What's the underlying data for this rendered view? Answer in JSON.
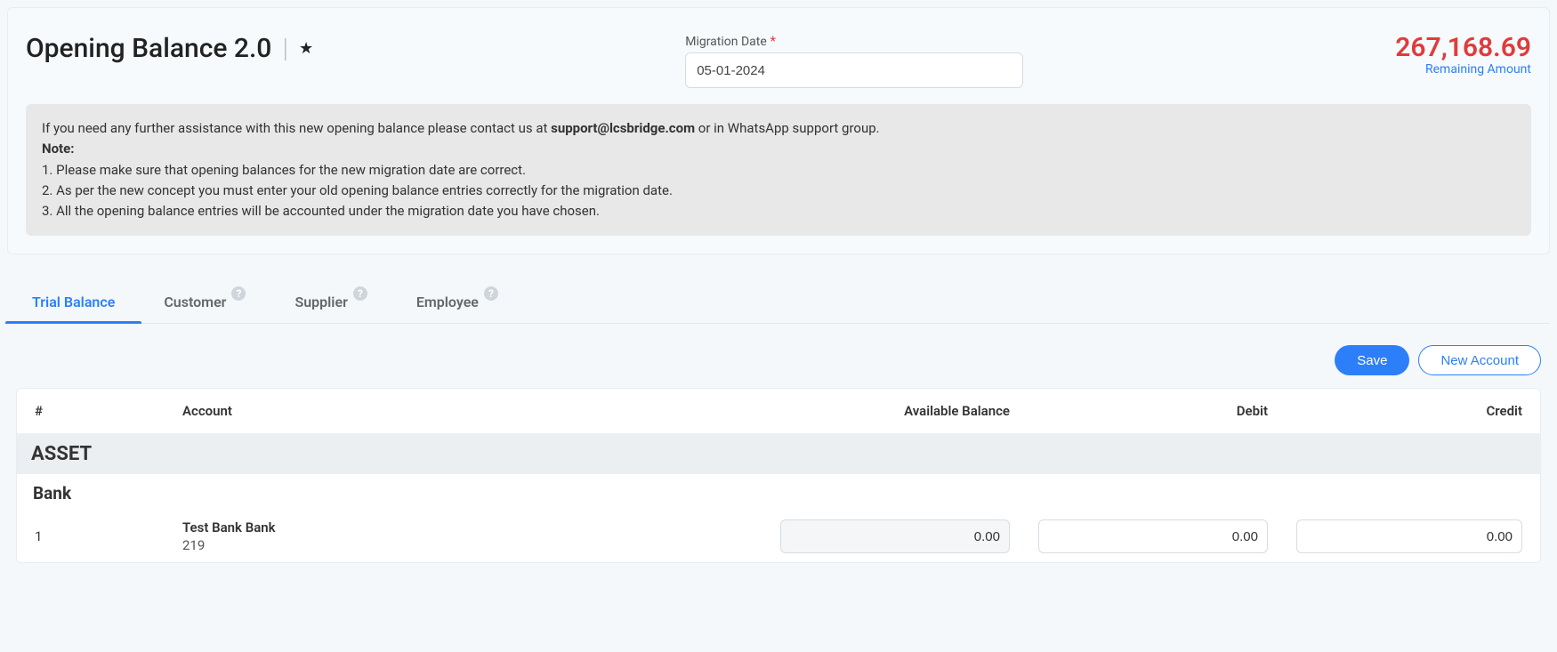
{
  "header": {
    "title": "Opening Balance 2.0",
    "migration_date_label": "Migration Date",
    "migration_date_value": "05-01-2024",
    "remaining_amount_value": "267,168.69",
    "remaining_amount_label": "Remaining Amount"
  },
  "note": {
    "contact_pre": "If you need any further assistance with this new opening balance please contact us at ",
    "contact_email": "support@lcsbridge.com",
    "contact_post": " or in WhatsApp support group.",
    "note_title": "Note:",
    "line1": "1. Please make sure that opening balances for the new migration date are correct.",
    "line2": "2. As per the new concept you must enter your old opening balance entries correctly for the migration date.",
    "line3": "3. All the opening balance entries will be accounted under the migration date you have chosen."
  },
  "tabs": {
    "trial_balance": "Trial Balance",
    "customer": "Customer",
    "supplier": "Supplier",
    "employee": "Employee"
  },
  "actions": {
    "save": "Save",
    "new_account": "New Account"
  },
  "table": {
    "col_index": "#",
    "col_account": "Account",
    "col_avail": "Available Balance",
    "col_debit": "Debit",
    "col_credit": "Credit",
    "group1": "ASSET",
    "subgroup1": "Bank",
    "row1_index": "1",
    "row1_name": "Test Bank Bank",
    "row1_code": "219",
    "row1_avail": "0.00",
    "row1_debit": "0.00",
    "row1_credit": "0.00"
  },
  "colors": {
    "accent": "#2d7ff9",
    "danger": "#e03b3b",
    "group_bg": "#eceff1",
    "note_bg": "#e8e8e8",
    "page_bg": "#f4f8fa"
  }
}
